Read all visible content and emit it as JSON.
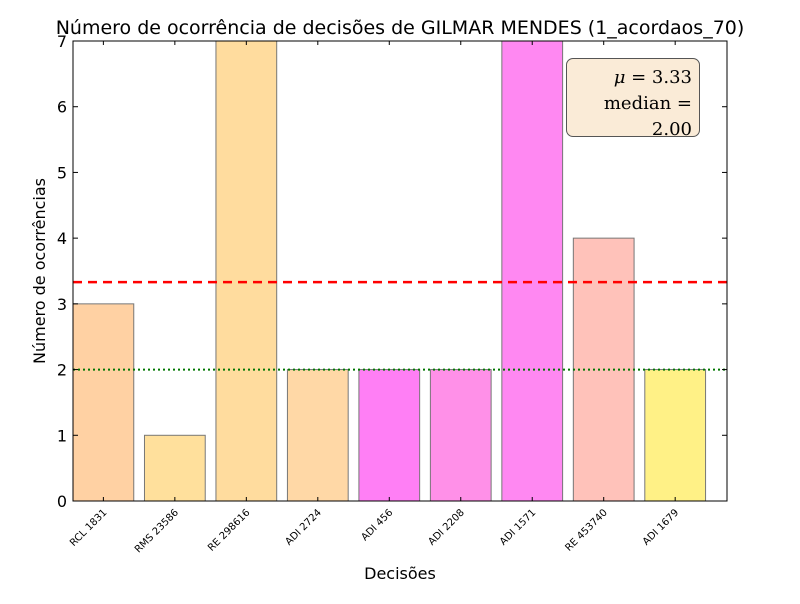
{
  "chart_data": {
    "type": "bar",
    "title": "Número de ocorrência de decisões de GILMAR MENDES (1_acordaos_70)",
    "xlabel": "Decisões",
    "ylabel": "Número de ocorrências",
    "ylim": [
      0,
      7
    ],
    "yticks": [
      0,
      1,
      2,
      3,
      4,
      5,
      6,
      7
    ],
    "categories": [
      "RCL 1831",
      "RMS 23586",
      "RE 298616",
      "ADI 2724",
      "ADI 456",
      "ADI 2208",
      "ADI 1571",
      "RE 453740",
      "ADI 1679"
    ],
    "values": [
      3,
      1,
      7,
      2,
      2,
      2,
      7,
      4,
      2
    ],
    "bar_colors": [
      "#ffd1a3",
      "#ffe09c",
      "#ffdc9e",
      "#ffd8a6",
      "#ff7ff5",
      "#ff90e8",
      "#ff88f2",
      "#ffc2ba",
      "#fff186"
    ],
    "mean": 3.33,
    "median": 2.0,
    "mean_line_color": "#ff0000",
    "median_line_color": "#007700",
    "grid": false,
    "legend": "none",
    "stats_box": {
      "mean_symbol": "μ",
      "mean_value": "3.33",
      "median_label": "median",
      "median_value": "2.00"
    }
  }
}
